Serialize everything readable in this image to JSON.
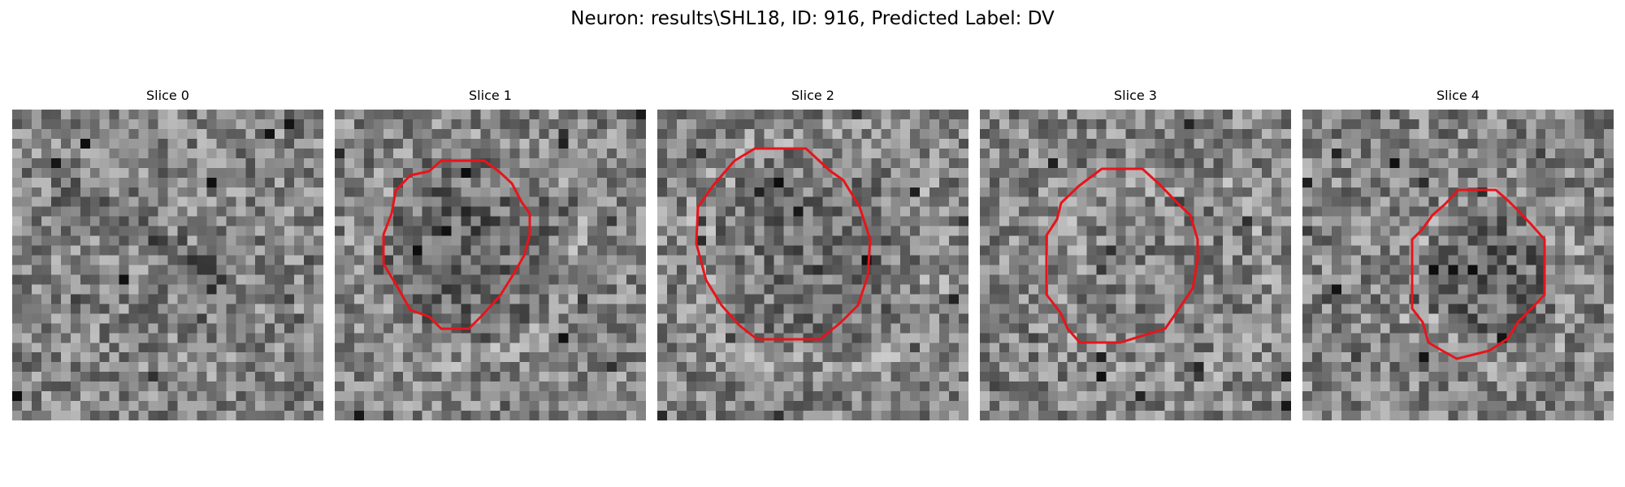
{
  "figure": {
    "title": "Neuron: results\\SHL18, ID: 916, Predicted Label: DV"
  },
  "panels": [
    {
      "title": "Slice 0",
      "has_contour": false
    },
    {
      "title": "Slice 1",
      "has_contour": true
    },
    {
      "title": "Slice 2",
      "has_contour": true
    },
    {
      "title": "Slice 3",
      "has_contour": true
    },
    {
      "title": "Slice 4",
      "has_contour": true
    }
  ],
  "image_grid": {
    "rows": 32,
    "cols": 32,
    "colormap": "gray"
  },
  "colors": {
    "contour": "#e8141b",
    "background": "#ffffff"
  }
}
